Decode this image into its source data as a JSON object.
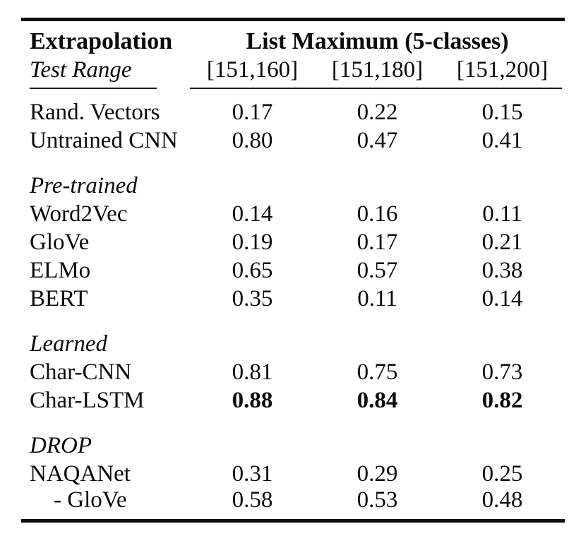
{
  "colors": {
    "text": "#0b0b0b",
    "background": "#ffffff",
    "rule": "#0d0d0d"
  },
  "table": {
    "header": {
      "col1_line1": "Extrapolation",
      "col1_line2": "Test Range",
      "group_title": "List Maximum (5-classes)",
      "ranges": [
        "[151,160]",
        "[151,180]",
        "[151,200]"
      ]
    },
    "rows": [
      {
        "type": "data",
        "label": "Rand. Vectors",
        "values": [
          "0.17",
          "0.22",
          "0.15"
        ]
      },
      {
        "type": "data",
        "label": "Untrained CNN",
        "values": [
          "0.80",
          "0.47",
          "0.41"
        ]
      },
      {
        "type": "section",
        "label": "Pre-trained"
      },
      {
        "type": "data",
        "label": "Word2Vec",
        "values": [
          "0.14",
          "0.16",
          "0.11"
        ]
      },
      {
        "type": "data",
        "label": "GloVe",
        "values": [
          "0.19",
          "0.17",
          "0.21"
        ]
      },
      {
        "type": "data",
        "label": "ELMo",
        "values": [
          "0.65",
          "0.57",
          "0.38"
        ]
      },
      {
        "type": "data",
        "label": "BERT",
        "values": [
          "0.35",
          "0.11",
          "0.14"
        ]
      },
      {
        "type": "section",
        "label": "Learned"
      },
      {
        "type": "data",
        "label": "Char-CNN",
        "values": [
          "0.81",
          "0.75",
          "0.73"
        ]
      },
      {
        "type": "data",
        "label": "Char-LSTM",
        "values": [
          "0.88",
          "0.84",
          "0.82"
        ],
        "bold": true
      },
      {
        "type": "section",
        "label": "DROP"
      },
      {
        "type": "data",
        "label": "NAQANet",
        "values": [
          "0.31",
          "0.29",
          "0.25"
        ]
      },
      {
        "type": "data",
        "label": "- GloVe",
        "values": [
          "0.58",
          "0.53",
          "0.48"
        ],
        "indent": true
      }
    ]
  }
}
